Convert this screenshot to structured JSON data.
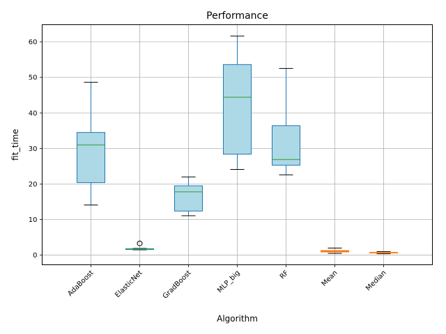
{
  "chart_data": {
    "type": "box",
    "title": "Performance",
    "xlabel": "Algorithm",
    "ylabel": "fit_time",
    "ylim": [
      -2.7,
      64.8
    ],
    "yticks": [
      0,
      10,
      20,
      30,
      40,
      50,
      60
    ],
    "grid": true,
    "categories": [
      "AdaBoost",
      "ElasticNet",
      "GradBoost",
      "MLP_big",
      "RF",
      "Mean",
      "Median"
    ],
    "boxes": [
      {
        "name": "AdaBoost",
        "whisker_low": 14.1,
        "q1": 20.4,
        "median": 31.0,
        "q3": 34.5,
        "whisker_high": 48.6,
        "outliers": []
      },
      {
        "name": "ElasticNet",
        "whisker_low": 1.5,
        "q1": 1.6,
        "median": 1.7,
        "q3": 1.8,
        "whisker_high": 1.9,
        "outliers": [
          3.3
        ]
      },
      {
        "name": "GradBoost",
        "whisker_low": 11.1,
        "q1": 12.4,
        "median": 17.8,
        "q3": 19.5,
        "whisker_high": 22.0,
        "outliers": []
      },
      {
        "name": "MLP_big",
        "whisker_low": 24.1,
        "q1": 28.4,
        "median": 44.4,
        "q3": 53.6,
        "whisker_high": 61.6,
        "outliers": []
      },
      {
        "name": "RF",
        "whisker_low": 22.6,
        "q1": 25.3,
        "median": 26.9,
        "q3": 36.4,
        "whisker_high": 52.5,
        "outliers": []
      },
      {
        "name": "Mean",
        "whisker_low": 0.5,
        "q1": 0.9,
        "median": 1.1,
        "q3": 1.3,
        "whisker_high": 2.0,
        "outliers": [],
        "highlight": true
      },
      {
        "name": "Median",
        "whisker_low": 0.4,
        "q1": 0.6,
        "median": 0.7,
        "q3": 0.8,
        "whisker_high": 1.0,
        "outliers": [],
        "highlight": true
      }
    ],
    "colors": {
      "box_fill": "#add8e6",
      "box_edge": "#1f77b4",
      "median": "#2ca02c",
      "whisker_cap": "#000000",
      "grid": "#b0b0b0",
      "highlight_fill": "#d62728",
      "highlight_edge": "#ff7f0e"
    }
  }
}
